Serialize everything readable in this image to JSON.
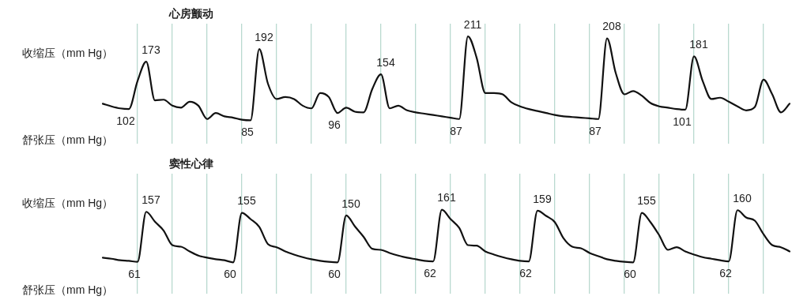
{
  "chart_data": [
    {
      "type": "line",
      "title": "心房颤动",
      "annotations": [
        "收缩压（mm Hg）",
        "舒张压（mm Hg）"
      ],
      "categories": [
        null,
        null,
        null,
        null,
        null,
        null,
        null,
        null,
        null,
        null,
        null,
        null,
        null,
        null,
        null,
        null,
        null,
        null,
        null,
        null,
        null,
        null,
        null,
        null,
        null,
        null,
        null,
        null,
        null,
        null,
        null,
        null,
        null,
        null,
        null,
        null,
        null,
        null,
        null,
        null,
        null,
        null,
        null,
        null,
        null,
        null,
        null,
        null,
        null,
        null,
        null,
        null,
        null,
        null,
        null,
        null,
        null,
        null,
        null,
        null,
        null,
        null,
        null,
        null,
        null,
        null,
        null,
        null,
        null,
        null,
        null,
        null,
        null,
        null,
        null,
        null,
        null,
        null,
        null,
        null
      ],
      "series": [
        {
          "color": "#111111",
          "values": [
            110,
            106,
            103,
            102,
            144,
            173,
            115,
            116,
            107,
            104,
            113,
            107,
            87,
            96,
            91,
            89,
            86,
            85,
            192,
            140,
            117,
            120,
            117,
            107,
            103,
            126,
            120,
            96,
            104,
            98,
            97,
            132,
            154,
            103,
            107,
            100,
            97,
            95,
            93,
            91,
            89,
            87,
            211,
            179,
            126,
            126,
            124,
            112,
            106,
            102,
            99,
            96,
            93,
            91,
            90,
            89,
            88,
            87,
            208,
            156,
            124,
            129,
            122,
            111,
            106,
            104,
            102,
            101,
            181,
            144,
            117,
            119,
            113,
            106,
            100,
            105,
            146,
            124,
            97,
            110
          ],
          "value_labels": [
            null,
            null,
            null,
            "102",
            null,
            "173",
            null,
            null,
            null,
            null,
            null,
            null,
            null,
            null,
            null,
            null,
            null,
            "85",
            "192",
            null,
            null,
            null,
            null,
            null,
            null,
            null,
            null,
            "96",
            null,
            null,
            null,
            null,
            "154",
            null,
            null,
            null,
            null,
            null,
            null,
            null,
            null,
            "87",
            "211",
            null,
            null,
            null,
            null,
            null,
            null,
            null,
            null,
            null,
            null,
            null,
            null,
            null,
            null,
            "87",
            "208",
            null,
            null,
            null,
            null,
            null,
            null,
            null,
            null,
            "101",
            "181",
            null,
            null,
            null,
            null,
            null,
            null,
            null,
            null,
            null,
            null,
            null
          ]
        }
      ],
      "ylim": [
        50,
        230
      ],
      "grid": "x",
      "tick_labels": false,
      "marker": "none"
    },
    {
      "type": "line",
      "title": "窦性心律",
      "annotations": [
        "收缩压（mm Hg）",
        "舒张压（mm Hg）"
      ],
      "categories": [
        null,
        null,
        null,
        null,
        null,
        null,
        null,
        null,
        null,
        null,
        null,
        null,
        null,
        null,
        null,
        null,
        null,
        null,
        null,
        null,
        null,
        null,
        null,
        null,
        null,
        null,
        null,
        null,
        null,
        null,
        null,
        null,
        null,
        null,
        null,
        null,
        null,
        null,
        null,
        null,
        null,
        null,
        null,
        null,
        null,
        null,
        null,
        null,
        null,
        null,
        null,
        null,
        null,
        null,
        null,
        null,
        null,
        null,
        null,
        null,
        null,
        null,
        null,
        null,
        null,
        null,
        null,
        null,
        null,
        null,
        null,
        null,
        null,
        null,
        null,
        null,
        null,
        null,
        null,
        null
      ],
      "series": [
        {
          "color": "#111111",
          "values": [
            69,
            67,
            64,
            63,
            61,
            157,
            138,
            121,
            93,
            90,
            81,
            73,
            69,
            66,
            64,
            60,
            155,
            143,
            128,
            95,
            89,
            81,
            75,
            70,
            66,
            63,
            61,
            60,
            150,
            129,
            109,
            86,
            84,
            78,
            73,
            69,
            66,
            63,
            62,
            161,
            143,
            126,
            93,
            92,
            81,
            75,
            70,
            66,
            63,
            62,
            159,
            149,
            137,
            106,
            90,
            87,
            78,
            72,
            66,
            63,
            61,
            60,
            155,
            137,
            112,
            84,
            89,
            81,
            75,
            70,
            67,
            64,
            62,
            160,
            146,
            140,
            114,
            93,
            89,
            81
          ],
          "value_labels": [
            null,
            null,
            null,
            null,
            "61",
            "157",
            null,
            null,
            null,
            null,
            null,
            null,
            null,
            null,
            null,
            "60",
            "155",
            null,
            null,
            null,
            null,
            null,
            null,
            null,
            null,
            null,
            null,
            "60",
            "150",
            null,
            null,
            null,
            null,
            null,
            null,
            null,
            null,
            null,
            "62",
            "161",
            null,
            null,
            null,
            null,
            null,
            null,
            null,
            null,
            null,
            "62",
            "159",
            null,
            null,
            null,
            null,
            null,
            null,
            null,
            null,
            null,
            null,
            "60",
            "155",
            null,
            null,
            null,
            null,
            null,
            null,
            null,
            null,
            null,
            "62",
            "160",
            null,
            null,
            null,
            null,
            null,
            null
          ]
        }
      ],
      "ylim": [
        0,
        230
      ],
      "grid": "x",
      "tick_labels": false,
      "marker": "none"
    }
  ]
}
